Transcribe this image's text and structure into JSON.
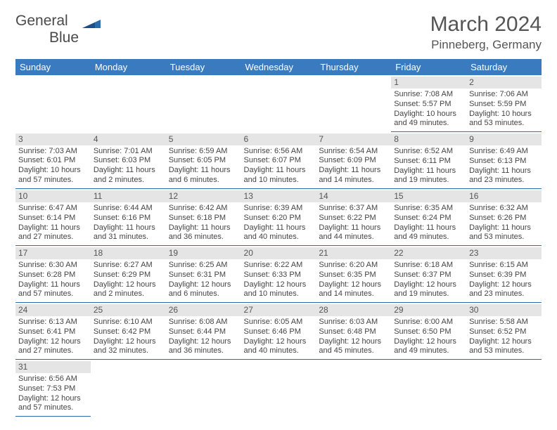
{
  "logo": {
    "line1": "General",
    "line2": "Blue"
  },
  "title": "March 2024",
  "location": "Pinneberg, Germany",
  "colors": {
    "header_bg": "#3a7bbf",
    "header_text": "#ffffff",
    "daynum_bg": "#e5e5e5",
    "border": "#2a6cb0",
    "text": "#444444",
    "logo_gray": "#4a4a4a",
    "logo_blue": "#2a6cb0"
  },
  "weekdays": [
    "Sunday",
    "Monday",
    "Tuesday",
    "Wednesday",
    "Thursday",
    "Friday",
    "Saturday"
  ],
  "weeks": [
    [
      null,
      null,
      null,
      null,
      null,
      {
        "day": "1",
        "sunrise": "Sunrise: 7:08 AM",
        "sunset": "Sunset: 5:57 PM",
        "daylight": "Daylight: 10 hours and 49 minutes."
      },
      {
        "day": "2",
        "sunrise": "Sunrise: 7:06 AM",
        "sunset": "Sunset: 5:59 PM",
        "daylight": "Daylight: 10 hours and 53 minutes."
      }
    ],
    [
      {
        "day": "3",
        "sunrise": "Sunrise: 7:03 AM",
        "sunset": "Sunset: 6:01 PM",
        "daylight": "Daylight: 10 hours and 57 minutes."
      },
      {
        "day": "4",
        "sunrise": "Sunrise: 7:01 AM",
        "sunset": "Sunset: 6:03 PM",
        "daylight": "Daylight: 11 hours and 2 minutes."
      },
      {
        "day": "5",
        "sunrise": "Sunrise: 6:59 AM",
        "sunset": "Sunset: 6:05 PM",
        "daylight": "Daylight: 11 hours and 6 minutes."
      },
      {
        "day": "6",
        "sunrise": "Sunrise: 6:56 AM",
        "sunset": "Sunset: 6:07 PM",
        "daylight": "Daylight: 11 hours and 10 minutes."
      },
      {
        "day": "7",
        "sunrise": "Sunrise: 6:54 AM",
        "sunset": "Sunset: 6:09 PM",
        "daylight": "Daylight: 11 hours and 14 minutes."
      },
      {
        "day": "8",
        "sunrise": "Sunrise: 6:52 AM",
        "sunset": "Sunset: 6:11 PM",
        "daylight": "Daylight: 11 hours and 19 minutes."
      },
      {
        "day": "9",
        "sunrise": "Sunrise: 6:49 AM",
        "sunset": "Sunset: 6:13 PM",
        "daylight": "Daylight: 11 hours and 23 minutes."
      }
    ],
    [
      {
        "day": "10",
        "sunrise": "Sunrise: 6:47 AM",
        "sunset": "Sunset: 6:14 PM",
        "daylight": "Daylight: 11 hours and 27 minutes."
      },
      {
        "day": "11",
        "sunrise": "Sunrise: 6:44 AM",
        "sunset": "Sunset: 6:16 PM",
        "daylight": "Daylight: 11 hours and 31 minutes."
      },
      {
        "day": "12",
        "sunrise": "Sunrise: 6:42 AM",
        "sunset": "Sunset: 6:18 PM",
        "daylight": "Daylight: 11 hours and 36 minutes."
      },
      {
        "day": "13",
        "sunrise": "Sunrise: 6:39 AM",
        "sunset": "Sunset: 6:20 PM",
        "daylight": "Daylight: 11 hours and 40 minutes."
      },
      {
        "day": "14",
        "sunrise": "Sunrise: 6:37 AM",
        "sunset": "Sunset: 6:22 PM",
        "daylight": "Daylight: 11 hours and 44 minutes."
      },
      {
        "day": "15",
        "sunrise": "Sunrise: 6:35 AM",
        "sunset": "Sunset: 6:24 PM",
        "daylight": "Daylight: 11 hours and 49 minutes."
      },
      {
        "day": "16",
        "sunrise": "Sunrise: 6:32 AM",
        "sunset": "Sunset: 6:26 PM",
        "daylight": "Daylight: 11 hours and 53 minutes."
      }
    ],
    [
      {
        "day": "17",
        "sunrise": "Sunrise: 6:30 AM",
        "sunset": "Sunset: 6:28 PM",
        "daylight": "Daylight: 11 hours and 57 minutes."
      },
      {
        "day": "18",
        "sunrise": "Sunrise: 6:27 AM",
        "sunset": "Sunset: 6:29 PM",
        "daylight": "Daylight: 12 hours and 2 minutes."
      },
      {
        "day": "19",
        "sunrise": "Sunrise: 6:25 AM",
        "sunset": "Sunset: 6:31 PM",
        "daylight": "Daylight: 12 hours and 6 minutes."
      },
      {
        "day": "20",
        "sunrise": "Sunrise: 6:22 AM",
        "sunset": "Sunset: 6:33 PM",
        "daylight": "Daylight: 12 hours and 10 minutes."
      },
      {
        "day": "21",
        "sunrise": "Sunrise: 6:20 AM",
        "sunset": "Sunset: 6:35 PM",
        "daylight": "Daylight: 12 hours and 14 minutes."
      },
      {
        "day": "22",
        "sunrise": "Sunrise: 6:18 AM",
        "sunset": "Sunset: 6:37 PM",
        "daylight": "Daylight: 12 hours and 19 minutes."
      },
      {
        "day": "23",
        "sunrise": "Sunrise: 6:15 AM",
        "sunset": "Sunset: 6:39 PM",
        "daylight": "Daylight: 12 hours and 23 minutes."
      }
    ],
    [
      {
        "day": "24",
        "sunrise": "Sunrise: 6:13 AM",
        "sunset": "Sunset: 6:41 PM",
        "daylight": "Daylight: 12 hours and 27 minutes."
      },
      {
        "day": "25",
        "sunrise": "Sunrise: 6:10 AM",
        "sunset": "Sunset: 6:42 PM",
        "daylight": "Daylight: 12 hours and 32 minutes."
      },
      {
        "day": "26",
        "sunrise": "Sunrise: 6:08 AM",
        "sunset": "Sunset: 6:44 PM",
        "daylight": "Daylight: 12 hours and 36 minutes."
      },
      {
        "day": "27",
        "sunrise": "Sunrise: 6:05 AM",
        "sunset": "Sunset: 6:46 PM",
        "daylight": "Daylight: 12 hours and 40 minutes."
      },
      {
        "day": "28",
        "sunrise": "Sunrise: 6:03 AM",
        "sunset": "Sunset: 6:48 PM",
        "daylight": "Daylight: 12 hours and 45 minutes."
      },
      {
        "day": "29",
        "sunrise": "Sunrise: 6:00 AM",
        "sunset": "Sunset: 6:50 PM",
        "daylight": "Daylight: 12 hours and 49 minutes."
      },
      {
        "day": "30",
        "sunrise": "Sunrise: 5:58 AM",
        "sunset": "Sunset: 6:52 PM",
        "daylight": "Daylight: 12 hours and 53 minutes."
      }
    ],
    [
      {
        "day": "31",
        "sunrise": "Sunrise: 6:56 AM",
        "sunset": "Sunset: 7:53 PM",
        "daylight": "Daylight: 12 hours and 57 minutes."
      },
      null,
      null,
      null,
      null,
      null,
      null
    ]
  ]
}
